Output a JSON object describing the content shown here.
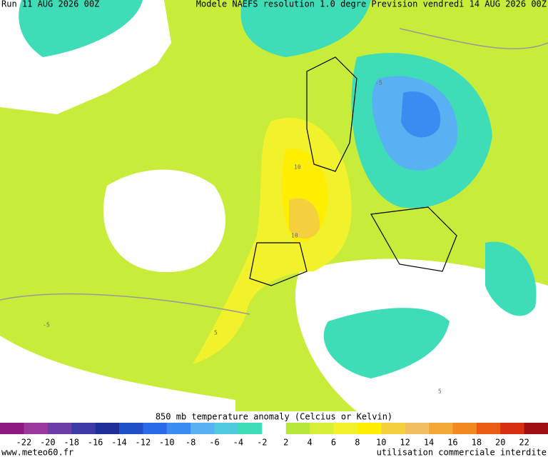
{
  "header": {
    "run": "Run 11 AUG 2026 00Z",
    "model": "Modele NAEFS resolution 1.0 degre",
    "forecast": "Prevision vendredi 14 AUG 2026 00Z"
  },
  "colorbar": {
    "title": "850 mb temperature anomaly (Celcius or Kelvin)",
    "labels": [
      "-22",
      "-20",
      "-18",
      "-16",
      "-14",
      "-12",
      "-10",
      "-8",
      "-6",
      "-4",
      "-2",
      "2",
      "4",
      "6",
      "8",
      "10",
      "12",
      "14",
      "16",
      "18",
      "20",
      "22"
    ],
    "colors": [
      "#8e1a80",
      "#9a3a9e",
      "#6c3da8",
      "#3d3aa6",
      "#1f2f9a",
      "#1f50c8",
      "#2a6ae6",
      "#3a8cf0",
      "#57b1f2",
      "#4fcadf",
      "#3fdcb8",
      "#ffffff",
      "#b6e83c",
      "#d6ef36",
      "#f2f22c",
      "#ffee00",
      "#f4d03e",
      "#f2c060",
      "#f3a838",
      "#f08a20",
      "#e95a12",
      "#d63010",
      "#a01010"
    ]
  },
  "footer": {
    "site": "www.meteo60.fr",
    "notice": "utilisation commerciale interdite"
  },
  "map": {
    "labels": [
      "10",
      "10",
      "-5",
      "-5",
      "5",
      "5"
    ]
  }
}
